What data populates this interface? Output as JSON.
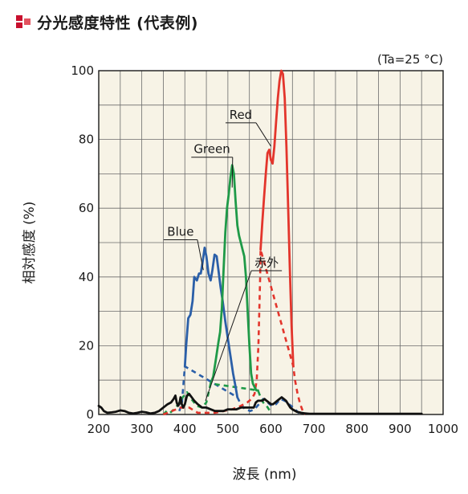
{
  "header": {
    "title": "分光感度特性 (代表例)"
  },
  "chart_data": {
    "type": "line",
    "title": "",
    "condition": "(Ta=25 °C)",
    "xlabel": "波長 (nm)",
    "ylabel": "相対感度 (%)",
    "xlim": [
      200,
      1000
    ],
    "ylim": [
      0,
      100
    ],
    "xticks": [
      200,
      300,
      400,
      500,
      600,
      700,
      800,
      900,
      1000
    ],
    "yticks": [
      0,
      20,
      40,
      60,
      80,
      100
    ],
    "grid": true,
    "background": "#f7f3e6",
    "series": [
      {
        "name": "Blue",
        "color": "#2b5fa8",
        "label_anchor": [
          443,
          42
        ],
        "label_pos": [
          390,
          52
        ],
        "solid": [
          [
            400,
            14
          ],
          [
            403,
            20
          ],
          [
            408,
            28
          ],
          [
            413,
            29
          ],
          [
            418,
            33
          ],
          [
            422,
            40
          ],
          [
            428,
            39
          ],
          [
            433,
            41
          ],
          [
            437,
            41
          ],
          [
            441,
            44
          ],
          [
            446,
            48.5
          ],
          [
            450,
            46
          ],
          [
            455,
            41
          ],
          [
            460,
            39
          ],
          [
            464,
            42
          ],
          [
            469,
            46.5
          ],
          [
            474,
            46
          ],
          [
            478,
            42
          ],
          [
            483,
            37
          ],
          [
            488,
            33
          ],
          [
            494,
            27
          ],
          [
            500,
            22
          ],
          [
            506,
            17
          ],
          [
            512,
            12
          ],
          [
            518,
            8
          ],
          [
            522,
            5
          ]
        ],
        "dashed": [
          [
            387,
            1
          ],
          [
            393,
            3
          ],
          [
            400,
            14
          ],
          [
            522,
            5
          ],
          [
            530,
            3
          ],
          [
            540,
            1.5
          ],
          [
            552,
            1
          ],
          [
            562,
            1.5
          ],
          [
            572,
            3
          ],
          [
            582,
            4.5
          ],
          [
            592,
            3.5
          ],
          [
            602,
            2.5
          ],
          [
            612,
            3
          ],
          [
            622,
            4.5
          ],
          [
            632,
            4
          ],
          [
            642,
            3
          ],
          [
            652,
            2
          ],
          [
            660,
            1
          ],
          [
            668,
            0
          ]
        ]
      },
      {
        "name": "Green",
        "color": "#1f9a48",
        "label_anchor": [
          510,
          66
        ],
        "label_pos": [
          463,
          76
        ],
        "solid": [
          [
            460,
            9
          ],
          [
            466,
            11
          ],
          [
            472,
            16
          ],
          [
            478,
            21
          ],
          [
            482,
            24
          ],
          [
            486,
            31
          ],
          [
            490,
            42
          ],
          [
            494,
            53
          ],
          [
            498,
            60
          ],
          [
            502,
            64
          ],
          [
            506,
            69
          ],
          [
            510,
            72.5
          ],
          [
            514,
            70
          ],
          [
            518,
            62
          ],
          [
            522,
            55
          ],
          [
            526,
            52
          ],
          [
            530,
            50
          ],
          [
            534,
            48
          ],
          [
            538,
            46
          ],
          [
            542,
            40
          ],
          [
            546,
            30
          ],
          [
            550,
            20
          ],
          [
            554,
            12
          ],
          [
            558,
            9
          ],
          [
            562,
            8
          ],
          [
            566,
            7
          ],
          [
            570,
            7
          ]
        ],
        "dashed": [
          [
            350,
            0
          ],
          [
            358,
            1
          ],
          [
            366,
            0.5
          ],
          [
            375,
            1.5
          ],
          [
            385,
            3
          ],
          [
            395,
            5
          ],
          [
            405,
            6.5
          ],
          [
            415,
            4.5
          ],
          [
            428,
            2.5
          ],
          [
            440,
            2
          ],
          [
            450,
            3.5
          ],
          [
            460,
            9
          ],
          [
            570,
            7
          ],
          [
            576,
            5
          ],
          [
            582,
            3.5
          ],
          [
            590,
            2.5
          ],
          [
            598,
            1
          ]
        ]
      },
      {
        "name": "Red",
        "color": "#e3352c",
        "label_anchor": [
          600,
          78
        ],
        "label_pos": [
          530,
          86
        ],
        "solid": [
          [
            576,
            48
          ],
          [
            580,
            56
          ],
          [
            584,
            63
          ],
          [
            588,
            70
          ],
          [
            592,
            76
          ],
          [
            596,
            77
          ],
          [
            600,
            74
          ],
          [
            604,
            73
          ],
          [
            608,
            78
          ],
          [
            612,
            85
          ],
          [
            616,
            92
          ],
          [
            620,
            97
          ],
          [
            624,
            100
          ],
          [
            628,
            99
          ],
          [
            632,
            92
          ],
          [
            636,
            78
          ],
          [
            640,
            60
          ],
          [
            644,
            42
          ],
          [
            648,
            26
          ],
          [
            650,
            20
          ],
          [
            652,
            14
          ]
        ],
        "dashed": [
          [
            350,
            0
          ],
          [
            370,
            1
          ],
          [
            390,
            2
          ],
          [
            410,
            2
          ],
          [
            430,
            0.5
          ],
          [
            450,
            0.5
          ],
          [
            470,
            0.5
          ],
          [
            490,
            1
          ],
          [
            510,
            1.5
          ],
          [
            530,
            2.5
          ],
          [
            545,
            3.5
          ],
          [
            555,
            4.5
          ],
          [
            562,
            6
          ],
          [
            567,
            10
          ],
          [
            571,
            20
          ],
          [
            573,
            30
          ],
          [
            575,
            40
          ],
          [
            576,
            48
          ],
          [
            652,
            14
          ],
          [
            656,
            10
          ],
          [
            662,
            6
          ],
          [
            668,
            3
          ],
          [
            674,
            1
          ],
          [
            680,
            0
          ]
        ]
      },
      {
        "name": "赤外",
        "color": "#111111",
        "label_anchor": [
          448,
          4
        ],
        "label_pos": [
          590,
          43
        ],
        "solid": [
          [
            200,
            2.5
          ],
          [
            206,
            2
          ],
          [
            212,
            1
          ],
          [
            220,
            0.5
          ],
          [
            230,
            0.6
          ],
          [
            240,
            0.8
          ],
          [
            250,
            1.2
          ],
          [
            260,
            1
          ],
          [
            270,
            0.5
          ],
          [
            280,
            0.3
          ],
          [
            290,
            0.5
          ],
          [
            300,
            0.8
          ],
          [
            310,
            0.6
          ],
          [
            320,
            0.3
          ],
          [
            330,
            0.5
          ],
          [
            340,
            1
          ],
          [
            350,
            2
          ],
          [
            360,
            3
          ],
          [
            368,
            3.5
          ],
          [
            374,
            4.5
          ],
          [
            378,
            5.5
          ],
          [
            381,
            3.5
          ],
          [
            384,
            2.5
          ],
          [
            387,
            3
          ],
          [
            390,
            5
          ],
          [
            393,
            3
          ],
          [
            396,
            2
          ],
          [
            400,
            3
          ],
          [
            405,
            5.5
          ],
          [
            410,
            6
          ],
          [
            416,
            5
          ],
          [
            422,
            4
          ],
          [
            430,
            3
          ],
          [
            440,
            2
          ],
          [
            450,
            2
          ],
          [
            460,
            1.5
          ],
          [
            470,
            1
          ],
          [
            480,
            1
          ],
          [
            490,
            1
          ],
          [
            500,
            1.5
          ],
          [
            510,
            1.5
          ],
          [
            520,
            1.5
          ],
          [
            530,
            2
          ],
          [
            540,
            2
          ],
          [
            550,
            2
          ],
          [
            560,
            2
          ],
          [
            565,
            3.5
          ],
          [
            570,
            4
          ],
          [
            575,
            4
          ],
          [
            580,
            4
          ],
          [
            585,
            4.5
          ],
          [
            590,
            4
          ],
          [
            595,
            3.5
          ],
          [
            600,
            3
          ],
          [
            605,
            3
          ],
          [
            610,
            3.5
          ],
          [
            615,
            4
          ],
          [
            620,
            4.5
          ],
          [
            625,
            5
          ],
          [
            630,
            4.5
          ],
          [
            635,
            4
          ],
          [
            640,
            3
          ],
          [
            645,
            2
          ],
          [
            650,
            1.5
          ],
          [
            660,
            0.8
          ],
          [
            670,
            0.5
          ],
          [
            680,
            0.3
          ],
          [
            690,
            0.2
          ],
          [
            700,
            0.2
          ],
          [
            720,
            0.2
          ],
          [
            750,
            0.2
          ],
          [
            800,
            0.2
          ],
          [
            850,
            0.2
          ],
          [
            900,
            0.2
          ],
          [
            950,
            0.2
          ]
        ]
      }
    ]
  }
}
